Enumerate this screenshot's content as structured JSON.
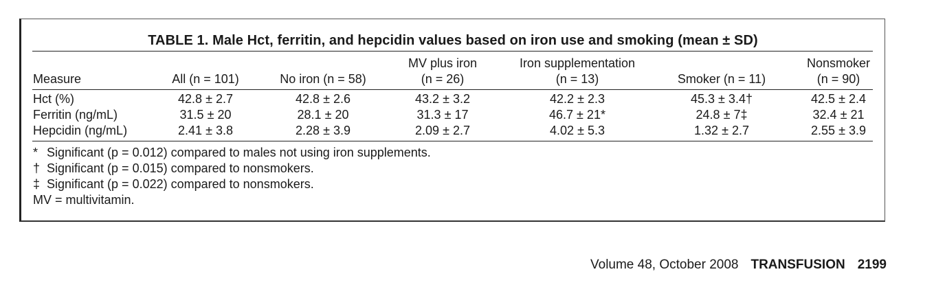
{
  "table": {
    "title": "TABLE 1. Male Hct, ferritin, and hepcidin values based on iron use and smoking (mean ± SD)",
    "header": {
      "measure": "Measure",
      "columns": [
        {
          "line1": "",
          "line2": "All (n = 101)"
        },
        {
          "line1": "",
          "line2": "No iron (n = 58)"
        },
        {
          "line1": "MV plus iron",
          "line2": "(n = 26)"
        },
        {
          "line1": "Iron supplementation",
          "line2": "(n = 13)"
        },
        {
          "line1": "",
          "line2": "Smoker (n = 11)"
        },
        {
          "line1": "Nonsmoker",
          "line2": "(n = 90)"
        }
      ]
    },
    "rows": [
      {
        "label": "Hct (%)",
        "values": [
          "42.8 ± 2.7",
          "42.8 ± 2.6",
          "43.2 ± 3.2",
          "42.2 ± 2.3",
          "45.3 ± 3.4†",
          "42.5 ± 2.4"
        ]
      },
      {
        "label": "Ferritin (ng/mL)",
        "values": [
          "31.5 ± 20",
          "28.1 ± 20",
          "31.3 ± 17",
          "46.7 ± 21*",
          "24.8 ± 7‡",
          "32.4 ± 21"
        ]
      },
      {
        "label": "Hepcidin (ng/mL)",
        "values": [
          "2.41 ± 3.8",
          "2.28 ± 3.9",
          "2.09 ± 2.7",
          "4.02 ± 5.3",
          "1.32 ± 2.7",
          "2.55 ± 3.9"
        ]
      }
    ],
    "notes": [
      {
        "mark": "*",
        "text": "Significant (p = 0.012) compared to males not using iron supplements."
      },
      {
        "mark": "†",
        "text": "Significant (p = 0.015) compared to nonsmokers."
      },
      {
        "mark": "‡",
        "text": "Significant (p = 0.022) compared to nonsmokers."
      },
      {
        "mark": "",
        "text": "MV = multivitamin."
      }
    ]
  },
  "footer": {
    "volume": "Volume 48, October 2008",
    "journal": "TRANSFUSION",
    "page": "2199"
  }
}
